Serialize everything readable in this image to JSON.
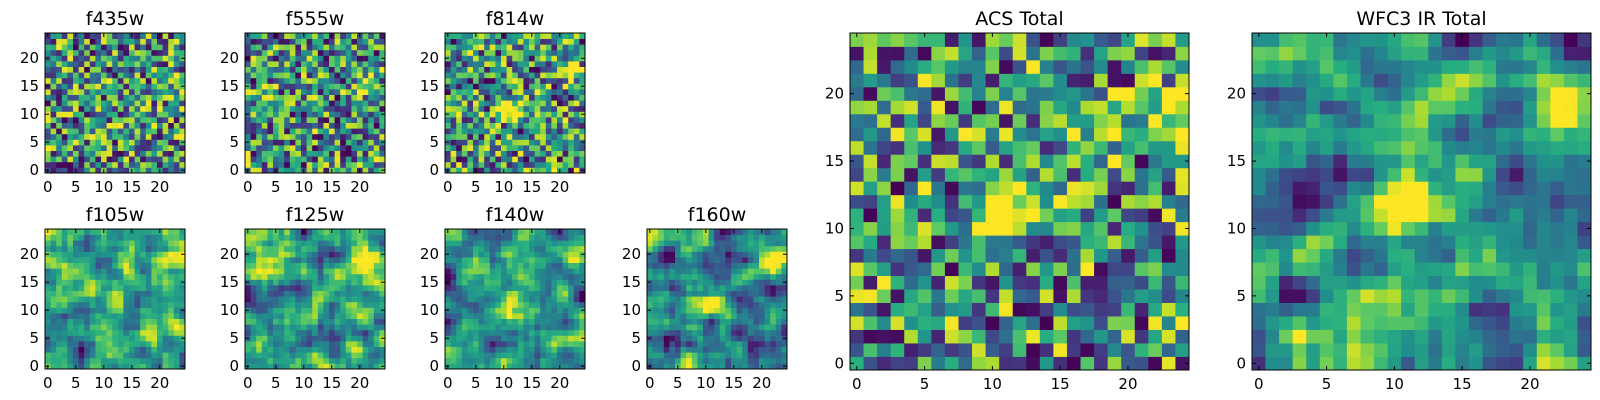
{
  "figure": {
    "colormap": "viridis",
    "colormap_stops": [
      "#440154",
      "#472d7b",
      "#3b528b",
      "#2c728e",
      "#21918c",
      "#28ae80",
      "#5ec962",
      "#addc30",
      "#fde725"
    ]
  },
  "chart_data": [
    {
      "type": "heatmap",
      "title": "f435w",
      "grid_size": 25,
      "xlim": [
        0,
        24
      ],
      "ylim": [
        0,
        24
      ],
      "xticks": [
        0,
        5,
        10,
        15,
        20
      ],
      "yticks": [
        0,
        5,
        10,
        15,
        20
      ],
      "pattern": "noise",
      "hotspots": []
    },
    {
      "type": "heatmap",
      "title": "f555w",
      "grid_size": 25,
      "xlim": [
        0,
        24
      ],
      "ylim": [
        0,
        24
      ],
      "xticks": [
        0,
        5,
        10,
        15,
        20
      ],
      "yticks": [
        0,
        5,
        10,
        15,
        20
      ],
      "pattern": "noise",
      "hotspots": [
        {
          "x": 21,
          "y": 16,
          "strength": 0.4
        }
      ]
    },
    {
      "type": "heatmap",
      "title": "f814w",
      "grid_size": 25,
      "xlim": [
        0,
        24
      ],
      "ylim": [
        0,
        24
      ],
      "xticks": [
        0,
        5,
        10,
        15,
        20
      ],
      "yticks": [
        0,
        5,
        10,
        15,
        20
      ],
      "pattern": "noise",
      "hotspots": [
        {
          "x": 11,
          "y": 11,
          "strength": 0.9
        },
        {
          "x": 22,
          "y": 18,
          "strength": 0.35
        }
      ]
    },
    {
      "type": "heatmap",
      "title": "f105w",
      "grid_size": 25,
      "xlim": [
        0,
        24
      ],
      "ylim": [
        0,
        24
      ],
      "xticks": [
        0,
        5,
        10,
        15,
        20
      ],
      "yticks": [
        0,
        5,
        10,
        15,
        20
      ],
      "pattern": "smooth",
      "hotspots": [
        {
          "x": 12,
          "y": 12,
          "strength": 0.5
        },
        {
          "x": 22,
          "y": 19,
          "strength": 0.6
        }
      ]
    },
    {
      "type": "heatmap",
      "title": "f125w",
      "grid_size": 25,
      "xlim": [
        0,
        24
      ],
      "ylim": [
        0,
        24
      ],
      "xticks": [
        0,
        5,
        10,
        15,
        20
      ],
      "yticks": [
        0,
        5,
        10,
        15,
        20
      ],
      "pattern": "smooth",
      "hotspots": [
        {
          "x": 13,
          "y": 12,
          "strength": 0.55
        },
        {
          "x": 21,
          "y": 19,
          "strength": 0.6
        }
      ]
    },
    {
      "type": "heatmap",
      "title": "f140w",
      "grid_size": 25,
      "xlim": [
        0,
        24
      ],
      "ylim": [
        0,
        24
      ],
      "xticks": [
        0,
        5,
        10,
        15,
        20
      ],
      "yticks": [
        0,
        5,
        10,
        15,
        20
      ],
      "pattern": "smooth",
      "hotspots": [
        {
          "x": 12,
          "y": 12,
          "strength": 0.55
        },
        {
          "x": 22,
          "y": 19,
          "strength": 0.6
        }
      ]
    },
    {
      "type": "heatmap",
      "title": "f160w",
      "grid_size": 25,
      "xlim": [
        0,
        24
      ],
      "ylim": [
        0,
        24
      ],
      "xticks": [
        0,
        5,
        10,
        15,
        20
      ],
      "yticks": [
        0,
        5,
        10,
        15,
        20
      ],
      "pattern": "smooth",
      "hotspots": [
        {
          "x": 11,
          "y": 11,
          "strength": 0.6
        },
        {
          "x": 22,
          "y": 19,
          "strength": 0.75
        }
      ]
    },
    {
      "type": "heatmap",
      "title": "ACS Total",
      "grid_size": 25,
      "xlim": [
        0,
        24
      ],
      "ylim": [
        0,
        24
      ],
      "xticks": [
        0,
        5,
        10,
        15,
        20
      ],
      "yticks": [
        0,
        5,
        10,
        15,
        20
      ],
      "pattern": "noise",
      "hotspots": [
        {
          "x": 11,
          "y": 11,
          "strength": 1.0
        },
        {
          "x": 23,
          "y": 19,
          "strength": 0.55
        },
        {
          "x": 18,
          "y": 17,
          "strength": 0.4
        }
      ]
    },
    {
      "type": "heatmap",
      "title": "WFC3 IR Total",
      "grid_size": 25,
      "xlim": [
        0,
        24
      ],
      "ylim": [
        0,
        24
      ],
      "xticks": [
        0,
        5,
        10,
        15,
        20
      ],
      "yticks": [
        0,
        5,
        10,
        15,
        20
      ],
      "pattern": "smooth",
      "hotspots": [
        {
          "x": 11,
          "y": 12,
          "strength": 0.85
        },
        {
          "x": 22,
          "y": 19,
          "strength": 0.8
        }
      ]
    }
  ]
}
